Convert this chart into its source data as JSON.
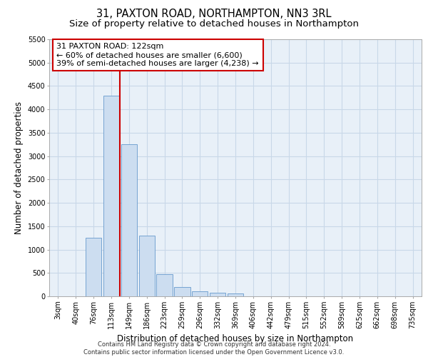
{
  "title_line1": "31, PAXTON ROAD, NORTHAMPTON, NN3 3RL",
  "title_line2": "Size of property relative to detached houses in Northampton",
  "xlabel": "Distribution of detached houses by size in Northampton",
  "ylabel": "Number of detached properties",
  "footnote": "Contains HM Land Registry data © Crown copyright and database right 2024.\nContains public sector information licensed under the Open Government Licence v3.0.",
  "bar_labels": [
    "3sqm",
    "40sqm",
    "76sqm",
    "113sqm",
    "149sqm",
    "186sqm",
    "223sqm",
    "259sqm",
    "296sqm",
    "332sqm",
    "369sqm",
    "406sqm",
    "442sqm",
    "479sqm",
    "515sqm",
    "552sqm",
    "589sqm",
    "625sqm",
    "662sqm",
    "698sqm",
    "735sqm"
  ],
  "bar_values": [
    0,
    0,
    1250,
    4300,
    3250,
    1300,
    480,
    200,
    100,
    75,
    60,
    0,
    0,
    0,
    0,
    0,
    0,
    0,
    0,
    0,
    0
  ],
  "bar_color": "#ccddf0",
  "bar_edge_color": "#6699cc",
  "vline_x_index": 3.5,
  "vline_color": "#cc0000",
  "annotation_text": "31 PAXTON ROAD: 122sqm\n← 60% of detached houses are smaller (6,600)\n39% of semi-detached houses are larger (4,238) →",
  "annotation_box_color": "#cc0000",
  "ylim": [
    0,
    5500
  ],
  "yticks": [
    0,
    500,
    1000,
    1500,
    2000,
    2500,
    3000,
    3500,
    4000,
    4500,
    5000,
    5500
  ],
  "grid_color": "#c8d8e8",
  "background_color": "#e8f0f8",
  "title_fontsize": 10.5,
  "subtitle_fontsize": 9.5,
  "axis_label_fontsize": 8.5,
  "tick_fontsize": 7,
  "annotation_fontsize": 8,
  "footnote_fontsize": 6
}
